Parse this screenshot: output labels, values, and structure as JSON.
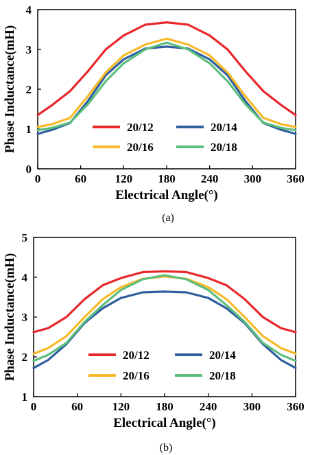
{
  "chart_data": [
    {
      "type": "line",
      "caption": "(a)",
      "xlabel": "Electrical Angle(°)",
      "ylabel": "Phase Inductance(mH)",
      "xlim": [
        0,
        360
      ],
      "ylim": [
        0,
        4
      ],
      "xticks": [
        0,
        60,
        120,
        180,
        240,
        300,
        360
      ],
      "yticks": [
        0,
        1,
        2,
        3,
        4
      ],
      "grid": false,
      "legend": "bottom-center",
      "series": [
        {
          "name": "20/12",
          "color": "#e8272b",
          "x": [
            0,
            20,
            45,
            70,
            95,
            120,
            150,
            180,
            210,
            240,
            265,
            290,
            315,
            340,
            360
          ],
          "y": [
            1.35,
            1.6,
            1.95,
            2.45,
            3.0,
            3.35,
            3.62,
            3.68,
            3.62,
            3.35,
            3.0,
            2.45,
            1.95,
            1.6,
            1.35
          ]
        },
        {
          "name": "20/14",
          "color": "#2f5f9e",
          "x": [
            0,
            20,
            45,
            70,
            95,
            120,
            150,
            180,
            210,
            240,
            265,
            290,
            315,
            340,
            360
          ],
          "y": [
            0.88,
            0.98,
            1.15,
            1.7,
            2.35,
            2.75,
            3.02,
            3.07,
            3.02,
            2.75,
            2.35,
            1.7,
            1.15,
            0.98,
            0.88
          ]
        },
        {
          "name": "20/16",
          "color": "#f7b928",
          "x": [
            0,
            20,
            45,
            70,
            95,
            120,
            150,
            180,
            210,
            240,
            265,
            290,
            315,
            340,
            360
          ],
          "y": [
            1.05,
            1.12,
            1.28,
            1.82,
            2.42,
            2.85,
            3.12,
            3.27,
            3.12,
            2.85,
            2.42,
            1.82,
            1.28,
            1.12,
            1.05
          ]
        },
        {
          "name": "20/18",
          "color": "#5dbe7e",
          "x": [
            0,
            20,
            45,
            70,
            95,
            120,
            150,
            180,
            210,
            240,
            265,
            290,
            315,
            340,
            360
          ],
          "y": [
            0.97,
            1.03,
            1.16,
            1.62,
            2.2,
            2.65,
            3.0,
            3.17,
            3.0,
            2.65,
            2.2,
            1.62,
            1.16,
            1.03,
            0.97
          ]
        }
      ]
    },
    {
      "type": "line",
      "caption": "(b)",
      "xlabel": "Electrical Angle(°)",
      "ylabel": "Phase Inductance(mH)",
      "xlim": [
        0,
        360
      ],
      "ylim": [
        1,
        5
      ],
      "xticks": [
        0,
        60,
        120,
        180,
        240,
        300,
        360
      ],
      "yticks": [
        1,
        2,
        3,
        4,
        5
      ],
      "grid": false,
      "legend": "bottom-center",
      "series": [
        {
          "name": "20/12",
          "color": "#e8272b",
          "x": [
            0,
            20,
            45,
            70,
            95,
            120,
            150,
            180,
            210,
            240,
            265,
            290,
            315,
            340,
            360
          ],
          "y": [
            2.62,
            2.72,
            3.0,
            3.45,
            3.8,
            3.98,
            4.13,
            4.15,
            4.13,
            3.98,
            3.8,
            3.45,
            3.0,
            2.72,
            2.62
          ]
        },
        {
          "name": "20/14",
          "color": "#2f5f9e",
          "x": [
            0,
            20,
            45,
            70,
            95,
            120,
            150,
            180,
            210,
            240,
            265,
            290,
            315,
            340,
            360
          ],
          "y": [
            1.72,
            1.92,
            2.32,
            2.85,
            3.22,
            3.48,
            3.62,
            3.64,
            3.62,
            3.48,
            3.22,
            2.85,
            2.32,
            1.92,
            1.72
          ]
        },
        {
          "name": "20/16",
          "color": "#f7b928",
          "x": [
            0,
            20,
            45,
            70,
            95,
            120,
            150,
            180,
            210,
            240,
            265,
            290,
            315,
            340,
            360
          ],
          "y": [
            2.08,
            2.22,
            2.52,
            3.0,
            3.45,
            3.75,
            3.96,
            4.02,
            3.96,
            3.75,
            3.45,
            3.0,
            2.52,
            2.22,
            2.08
          ]
        },
        {
          "name": "20/18",
          "color": "#5dbe7e",
          "x": [
            0,
            20,
            45,
            70,
            95,
            120,
            150,
            180,
            210,
            240,
            265,
            290,
            315,
            340,
            360
          ],
          "y": [
            1.9,
            2.05,
            2.35,
            2.88,
            3.3,
            3.68,
            3.95,
            4.05,
            3.95,
            3.68,
            3.3,
            2.88,
            2.35,
            2.05,
            1.9
          ]
        }
      ]
    }
  ]
}
